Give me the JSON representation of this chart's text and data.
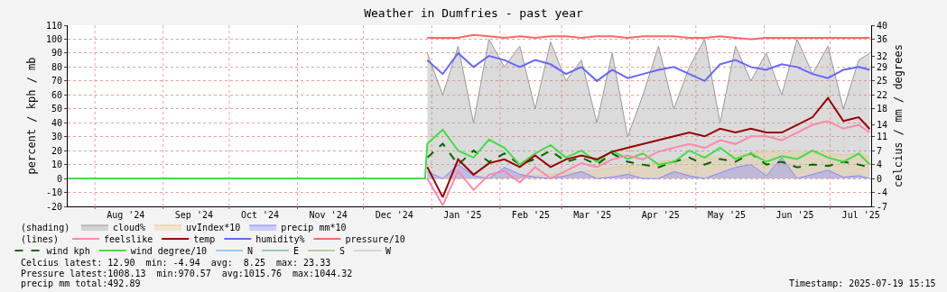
{
  "chart_data": {
    "type": "line",
    "title": "Weather in Dumfries - past year",
    "ylabel": "percent / kph / mb",
    "y2label": "celcius / mm / degrees",
    "x": [
      "2024-12-30",
      "2025-01-06",
      "2025-01-13",
      "2025-01-20",
      "2025-01-27",
      "2025-02-03",
      "2025-02-10",
      "2025-02-17",
      "2025-02-24",
      "2025-03-03",
      "2025-03-10",
      "2025-03-17",
      "2025-03-24",
      "2025-03-31",
      "2025-04-07",
      "2025-04-14",
      "2025-04-21",
      "2025-04-28",
      "2025-05-05",
      "2025-05-12",
      "2025-05-19",
      "2025-05-26",
      "2025-06-02",
      "2025-06-09",
      "2025-06-16",
      "2025-06-23",
      "2025-06-30",
      "2025-07-07",
      "2025-07-14",
      "2025-07-19"
    ],
    "series": [
      {
        "name": "cloud%",
        "type": "area",
        "color": "#999999",
        "values": [
          90,
          60,
          95,
          40,
          100,
          80,
          95,
          50,
          98,
          70,
          85,
          40,
          90,
          30,
          60,
          95,
          50,
          80,
          100,
          40,
          95,
          70,
          90,
          60,
          100,
          75,
          95,
          50,
          85,
          90
        ]
      },
      {
        "name": "uvIndex*10",
        "type": "area",
        "color": "#e8cc90",
        "values": [
          0,
          0,
          0,
          0,
          0,
          1,
          2,
          2,
          3,
          4,
          5,
          6,
          8,
          9,
          10,
          12,
          13,
          14,
          15,
          15,
          17,
          18,
          20,
          18,
          20,
          19,
          18,
          17,
          18,
          16
        ]
      },
      {
        "name": "precip mm*10",
        "type": "area",
        "color": "#8888ff",
        "values": [
          5,
          0,
          10,
          2,
          0,
          8,
          3,
          1,
          0,
          2,
          5,
          0,
          1,
          3,
          0,
          0,
          5,
          2,
          0,
          4,
          8,
          10,
          2,
          15,
          0,
          3,
          6,
          1,
          2,
          0
        ]
      },
      {
        "name": "feelslike",
        "color": "#ff88aa",
        "axis": "y2",
        "values": [
          0,
          -7,
          2,
          -3,
          1,
          2,
          -1,
          3,
          0,
          2,
          4,
          3,
          5,
          6,
          5,
          7,
          8,
          9,
          8,
          10,
          9,
          11,
          11,
          10,
          12,
          14,
          15,
          13,
          14,
          12
        ]
      },
      {
        "name": "temp",
        "color": "#990000",
        "axis": "y2",
        "values": [
          3,
          -4.9,
          5,
          1,
          4,
          5,
          3,
          6,
          3,
          5,
          6,
          5,
          7,
          8,
          9,
          10,
          11,
          12,
          11,
          13,
          12,
          13,
          12,
          12,
          14,
          16,
          21,
          15,
          16,
          12.9
        ]
      },
      {
        "name": "humidity%",
        "color": "#6666ff",
        "values": [
          85,
          75,
          90,
          80,
          88,
          85,
          80,
          85,
          82,
          75,
          80,
          70,
          78,
          72,
          75,
          78,
          80,
          75,
          70,
          82,
          85,
          80,
          78,
          82,
          80,
          75,
          72,
          78,
          80,
          78
        ]
      },
      {
        "name": "pressure/10",
        "color": "#ff6666",
        "values": [
          101,
          101,
          101,
          103,
          102,
          101,
          102,
          101,
          102,
          102,
          101,
          102,
          102,
          101,
          102,
          102,
          102,
          101,
          101,
          102,
          101,
          100,
          101,
          101,
          101,
          101,
          101,
          101,
          101,
          101
        ]
      },
      {
        "name": "wind kph",
        "color": "#006600",
        "line_style": "dashed",
        "values": [
          15,
          25,
          10,
          20,
          12,
          18,
          10,
          14,
          20,
          12,
          15,
          10,
          18,
          12,
          10,
          8,
          12,
          15,
          10,
          14,
          12,
          18,
          10,
          12,
          8,
          10,
          9,
          12,
          10,
          8
        ]
      },
      {
        "name": "wind degree/10",
        "color": "#44dd44",
        "x": [
          "2024-07-19T15:15",
          "2024-12-29",
          "2024-12-30",
          "2025-01-06",
          "2025-01-13",
          "2025-01-20",
          "2025-01-27",
          "2025-02-03",
          "2025-02-10",
          "2025-02-17",
          "2025-02-24",
          "2025-03-03",
          "2025-03-10",
          "2025-03-17",
          "2025-03-24",
          "2025-03-31",
          "2025-04-07",
          "2025-04-14",
          "2025-04-21",
          "2025-04-28",
          "2025-05-05",
          "2025-05-12",
          "2025-05-19",
          "2025-05-26",
          "2025-06-02",
          "2025-06-09",
          "2025-06-16",
          "2025-06-23",
          "2025-06-30",
          "2025-07-07",
          "2025-07-14",
          "2025-07-19"
        ],
        "values": [
          0,
          0,
          25,
          35,
          20,
          15,
          28,
          22,
          10,
          18,
          24,
          15,
          20,
          12,
          20,
          14,
          18,
          10,
          12,
          20,
          15,
          22,
          14,
          18,
          12,
          16,
          14,
          20,
          15,
          12,
          18,
          10
        ]
      },
      {
        "name": "N",
        "color": "#99ccff",
        "values": [
          null,
          null,
          null,
          null,
          null,
          null,
          null,
          null,
          null,
          null,
          null,
          null,
          null,
          null,
          null,
          null,
          null,
          null,
          null,
          null,
          null,
          null,
          null,
          null,
          null,
          null,
          null,
          null,
          null,
          null
        ]
      },
      {
        "name": "E",
        "color": "#99ccbb",
        "values": [
          null,
          null,
          null,
          null,
          null,
          null,
          null,
          null,
          null,
          null,
          null,
          null,
          null,
          null,
          null,
          null,
          null,
          null,
          null,
          null,
          null,
          null,
          null,
          null,
          null,
          null,
          null,
          null,
          null,
          null
        ]
      },
      {
        "name": "S",
        "color": "#bbcc99",
        "values": [
          null,
          null,
          null,
          null,
          null,
          null,
          null,
          null,
          null,
          null,
          null,
          null,
          null,
          null,
          null,
          null,
          null,
          null,
          null,
          null,
          null,
          null,
          null,
          null,
          null,
          null,
          null,
          null,
          null,
          null
        ]
      },
      {
        "name": "W",
        "color": "#ccddcc",
        "values": [
          null,
          null,
          null,
          null,
          null,
          null,
          null,
          null,
          null,
          null,
          null,
          null,
          null,
          null,
          null,
          null,
          null,
          null,
          null,
          null,
          null,
          null,
          null,
          null,
          null,
          null,
          null,
          null,
          null,
          null
        ]
      }
    ],
    "xlim": [
      "2024-07-19T15:15",
      "2025-07-19T15:15"
    ],
    "xticks": [
      {
        "value": "2024-08-01",
        "label": null
      },
      {
        "value": "2024-08-15",
        "label": "Aug '24"
      },
      {
        "value": "2024-09-01",
        "label": null
      },
      {
        "value": "2024-09-15",
        "label": "Sep '24"
      },
      {
        "value": "2024-10-01",
        "label": null
      },
      {
        "value": "2024-10-15",
        "label": "Oct '24"
      },
      {
        "value": "2024-11-01",
        "label": null
      },
      {
        "value": "2024-11-15",
        "label": "Nov '24"
      },
      {
        "value": "2024-12-01",
        "label": null
      },
      {
        "value": "2024-12-15",
        "label": "Dec '24"
      },
      {
        "value": "2025-01-01",
        "label": null
      },
      {
        "value": "2025-01-15",
        "label": "Jan '25"
      },
      {
        "value": "2025-02-01",
        "label": null
      },
      {
        "value": "2025-02-15",
        "label": "Feb '25"
      },
      {
        "value": "2025-03-01",
        "label": null
      },
      {
        "value": "2025-03-15",
        "label": "Mar '25"
      },
      {
        "value": "2025-04-01",
        "label": null
      },
      {
        "value": "2025-04-15",
        "label": "Apr '25"
      },
      {
        "value": "2025-05-01",
        "label": null
      },
      {
        "value": "2025-05-15",
        "label": "May '25"
      },
      {
        "value": "2025-06-01",
        "label": null
      },
      {
        "value": "2025-06-15",
        "label": "Jun '25"
      },
      {
        "value": "2025-07-01",
        "label": null
      },
      {
        "value": "2025-07-15",
        "label": "Jul '25"
      }
    ],
    "ylim": [
      -20,
      110
    ],
    "yticks": [
      -20,
      -10,
      0,
      10,
      20,
      30,
      40,
      50,
      60,
      70,
      80,
      90,
      100,
      110
    ],
    "y2lim": [
      -7.27,
      40
    ],
    "y2ticks": [
      {
        "value": -7.27,
        "label": "-7"
      },
      {
        "value": -3.64,
        "label": "-4"
      },
      0,
      {
        "value": 3.64,
        "label": "4"
      },
      {
        "value": 7.27,
        "label": "7"
      },
      {
        "value": 10.91,
        "label": "11"
      },
      14,
      {
        "value": 18.18,
        "label": "18"
      },
      {
        "value": 21.82,
        "label": "22"
      },
      {
        "value": 25.45,
        "label": "25"
      },
      {
        "value": 29.09,
        "label": "29"
      },
      32,
      {
        "value": 36.36,
        "label": "36"
      },
      40
    ],
    "grid": true,
    "legend": "bottom left",
    "marker": "none",
    "annotations": [
      "(shading)",
      "(lines)",
      "Celcius latest: 12.90  min: -4.94  avg:  8.25  max: 23.33",
      "Pressure latest:1008.13  min:970.57  avg:1015.76  max:1044.32",
      "precip mm total:492.89",
      "Timestamp: 2025-07-19 15:15"
    ]
  }
}
